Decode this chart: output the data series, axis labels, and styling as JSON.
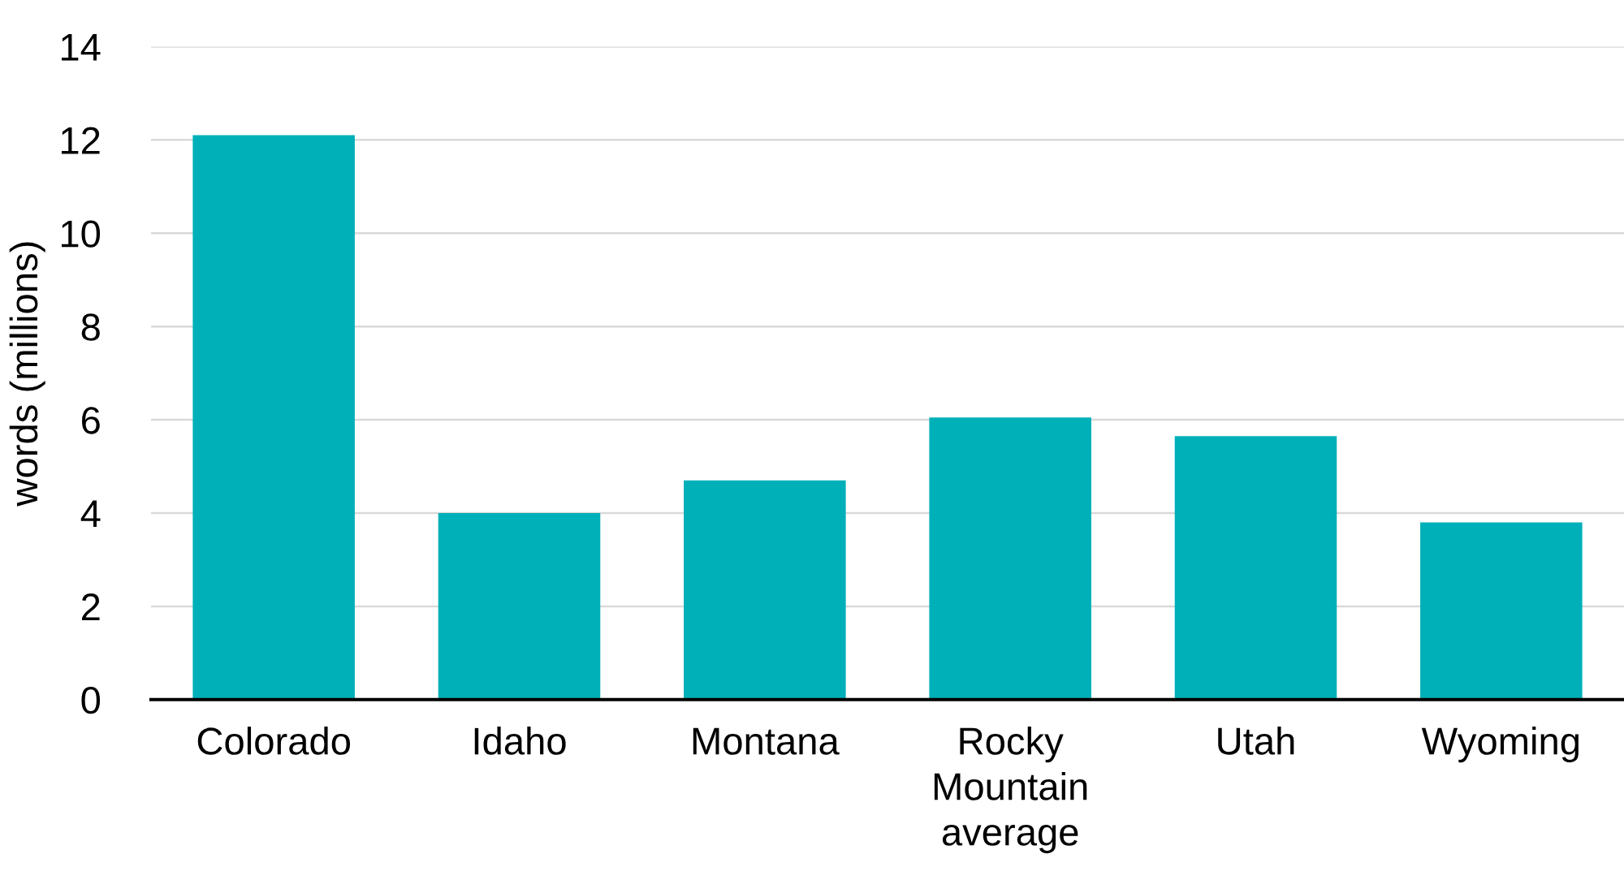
{
  "chart_data": {
    "type": "bar",
    "ylabel": "words (millions)",
    "categories": [
      "Colorado",
      "Idaho",
      "Montana",
      "Rocky\nMountain\naverage",
      "Utah",
      "Wyoming"
    ],
    "values": [
      12.1,
      4.0,
      4.7,
      6.05,
      5.65,
      3.8
    ],
    "color": "#00b0b9",
    "ylim": [
      0,
      14
    ],
    "yticks": [
      0,
      2,
      4,
      6,
      8,
      10,
      12,
      14
    ],
    "grid": "y"
  }
}
